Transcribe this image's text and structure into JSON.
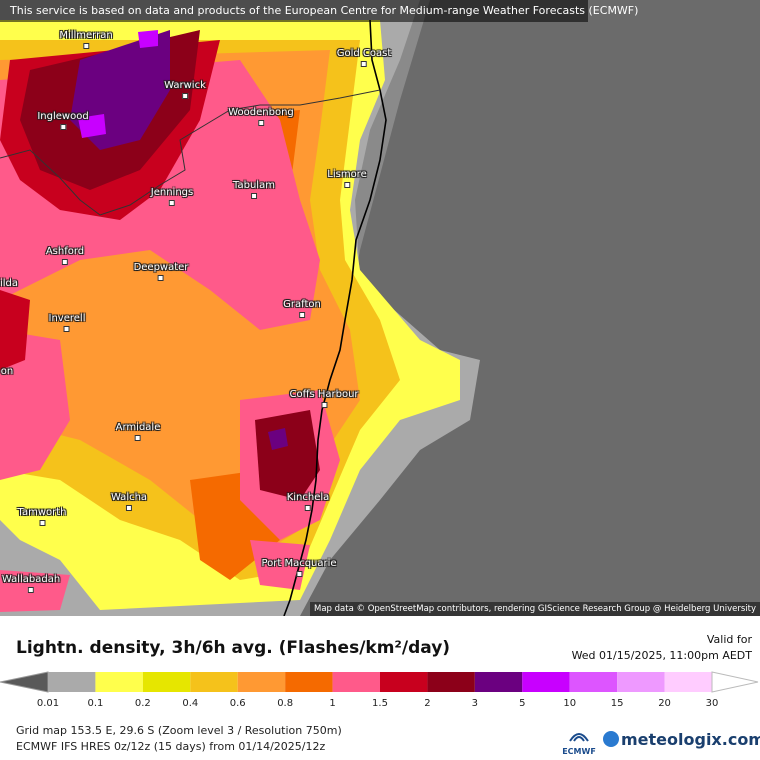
{
  "attribution_top": "This service is based on data and products of the European Centre for Medium-range Weather Forecasts (ECMWF)",
  "attribution_bottom": "Map data © OpenStreetMap contributors, rendering GIScience Research Group @ Heidelberg University",
  "cities": [
    {
      "name": "Millmerran"
    },
    {
      "name": "Gold Coast"
    },
    {
      "name": "Warwick"
    },
    {
      "name": "Inglewood"
    },
    {
      "name": "Woodenbong"
    },
    {
      "name": "Lismore"
    },
    {
      "name": "Tabulam"
    },
    {
      "name": "Jennings"
    },
    {
      "name": "Ashford"
    },
    {
      "name": "Deepwater"
    },
    {
      "name": "ilda"
    },
    {
      "name": "Grafton"
    },
    {
      "name": "Inverell"
    },
    {
      "name": "on"
    },
    {
      "name": "Coffs Harbour"
    },
    {
      "name": "Armidale"
    },
    {
      "name": "Kinchela"
    },
    {
      "name": "Walcha"
    },
    {
      "name": "Tamworth"
    },
    {
      "name": "Port Macquarie"
    },
    {
      "name": "Wallabadah"
    }
  ],
  "legend": {
    "title": "Lightn. density, 3h/6h avg. (Flashes/km²/day)",
    "valid_label": "Valid for",
    "valid_time": "Wed 01/15/2025, 11:00pm AEDT",
    "ticks": [
      "0.01",
      "0.1",
      "0.2",
      "0.4",
      "0.6",
      "0.8",
      "1",
      "1.5",
      "2",
      "3",
      "5",
      "10",
      "15",
      "20",
      "30"
    ],
    "colors": [
      "#595959",
      "#aaaaaa",
      "#ffff4c",
      "#e6e600",
      "#f5c21b",
      "#ff9933",
      "#f56a00",
      "#ff5a8a",
      "#c8001e",
      "#8c0019",
      "#6b0080",
      "#c800ff",
      "#dd55ff",
      "#ee99ff",
      "#ffccff",
      "#ffffff"
    ],
    "footer_line1": "Grid map 153.5 E, 29.6 S (Zoom level 3 / Resolution 750m)",
    "footer_line2": "ECMWF IFS HRES 0z/12z (15 days)  from  01/14/2025/12z",
    "ecmwf_logo": "ECMWF",
    "brand": "meteologix.com"
  }
}
